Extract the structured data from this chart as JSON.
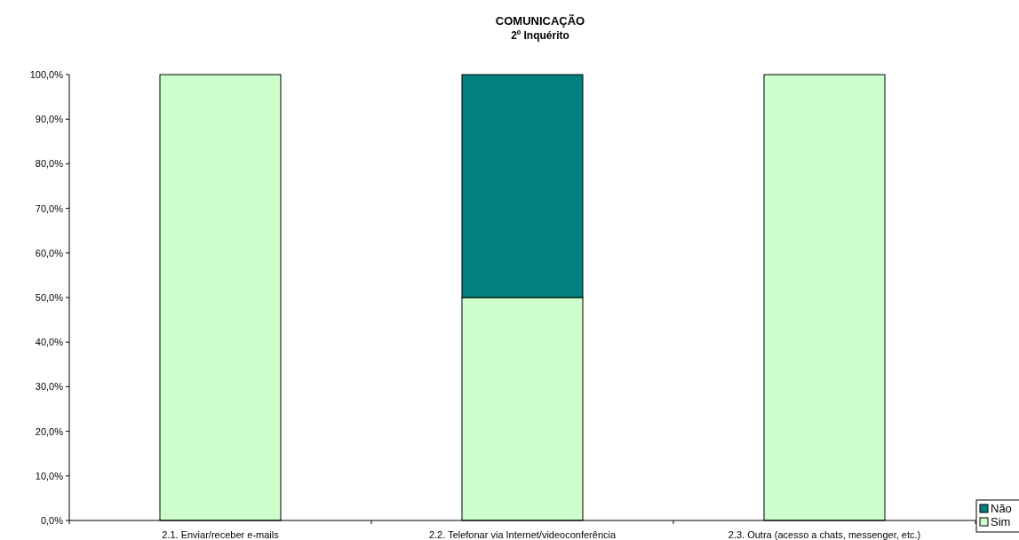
{
  "chart_data": {
    "type": "bar",
    "title": "COMUNICAÇÃO",
    "subtitle": "2º Inquérito",
    "stacked": true,
    "categories": [
      "2.1. Enviar/receber e-mails",
      "2.2. Telefonar via Internet/videoconferência",
      "2.3. Outra (acesso a chats, messenger, etc.)"
    ],
    "series": [
      {
        "name": "Sim",
        "color": "#ccffcc",
        "values": [
          100,
          50,
          100
        ]
      },
      {
        "name": "Não",
        "color": "#008080",
        "values": [
          0,
          50,
          0
        ]
      }
    ],
    "ylim": [
      0,
      100
    ],
    "yticks": [
      {
        "value": 0,
        "label": "0,0%"
      },
      {
        "value": 10,
        "label": "10,0%"
      },
      {
        "value": 20,
        "label": "20,0%"
      },
      {
        "value": 30,
        "label": "30,0%"
      },
      {
        "value": 40,
        "label": "40,0%"
      },
      {
        "value": 50,
        "label": "50,0%"
      },
      {
        "value": 60,
        "label": "60,0%"
      },
      {
        "value": 70,
        "label": "70,0%"
      },
      {
        "value": 80,
        "label": "80,0%"
      },
      {
        "value": 90,
        "label": "90,0%"
      },
      {
        "value": 100,
        "label": "100,0%"
      }
    ],
    "grid": false,
    "legend": "bottom right"
  }
}
